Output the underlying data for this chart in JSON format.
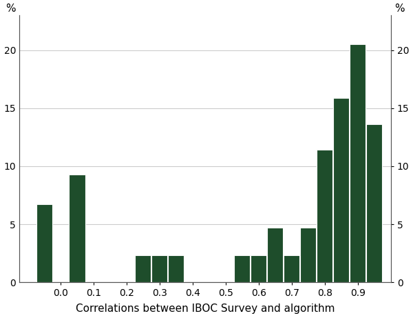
{
  "bar_centers": [
    -0.05,
    0.05,
    0.25,
    0.3,
    0.35,
    0.55,
    0.6,
    0.65,
    0.7,
    0.75,
    0.8,
    0.85,
    0.9,
    0.95
  ],
  "bar_heights": [
    6.7,
    9.3,
    2.3,
    2.3,
    2.3,
    2.3,
    2.3,
    4.7,
    2.3,
    4.7,
    11.4,
    15.9,
    20.5,
    13.6
  ],
  "bar_width": 0.048,
  "bar_color": "#1e4d2b",
  "bar_edge_color": "#ffffff",
  "bar_edge_width": 0.8,
  "xlim": [
    -0.125,
    1.0
  ],
  "ylim": [
    0,
    23
  ],
  "xtick_positions": [
    0.0,
    0.1,
    0.2,
    0.3,
    0.4,
    0.5,
    0.6,
    0.7,
    0.8,
    0.9
  ],
  "xtick_labels": [
    "0.0",
    "0.1",
    "0.2",
    "0.3",
    "0.4",
    "0.5",
    "0.6",
    "0.7",
    "0.8",
    "0.9"
  ],
  "yticks": [
    0,
    5,
    10,
    15,
    20
  ],
  "ylabel_left": "%",
  "ylabel_right": "%",
  "xlabel": "Correlations between IBOC Survey and algorithm",
  "grid_color": "#cccccc",
  "grid_linewidth": 0.8,
  "bg_color": "#ffffff",
  "xlabel_fontsize": 11,
  "tick_fontsize": 10,
  "ylabel_fontsize": 11
}
